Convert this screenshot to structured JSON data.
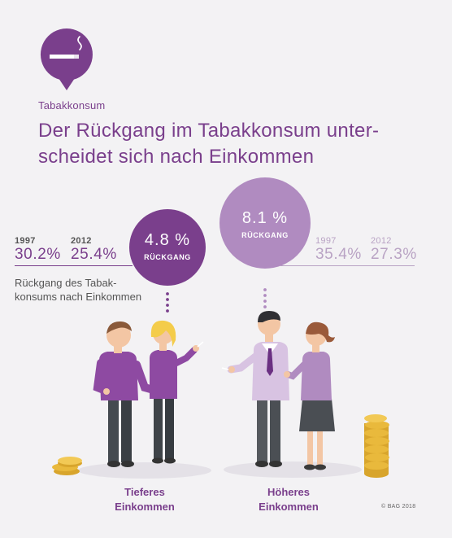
{
  "header": {
    "category": "Tabakkonsum",
    "title_line1": "Der Rückgang im Tabakkonsum unter-",
    "title_line2": "scheidet sich nach Einkommen"
  },
  "description": {
    "line1": "Rückgang des Tabak-",
    "line2": "konsums nach Einkommen"
  },
  "low_income": {
    "year_a": "1997",
    "value_a": "30.2%",
    "year_b": "2012",
    "value_b": "25.4%",
    "decline_pct": "4.8 %",
    "decline_label": "RÜCKGANG",
    "label_line1": "Tieferes",
    "label_line2": "Einkommen"
  },
  "high_income": {
    "year_a": "1997",
    "value_a": "35.4%",
    "year_b": "2012",
    "value_b": "27.3%",
    "decline_pct": "8.1 %",
    "decline_label": "RÜCKGANG",
    "label_line1": "Höheres",
    "label_line2": "Einkommen"
  },
  "copyright": "© BAG 2018",
  "colors": {
    "accent": "#7a3f8c",
    "accent_light": "#b08bc0",
    "muted": "#b9a3c4",
    "coin": "#e9b93c"
  },
  "icons": [
    "cigarette-icon",
    "map-pin-icon"
  ]
}
